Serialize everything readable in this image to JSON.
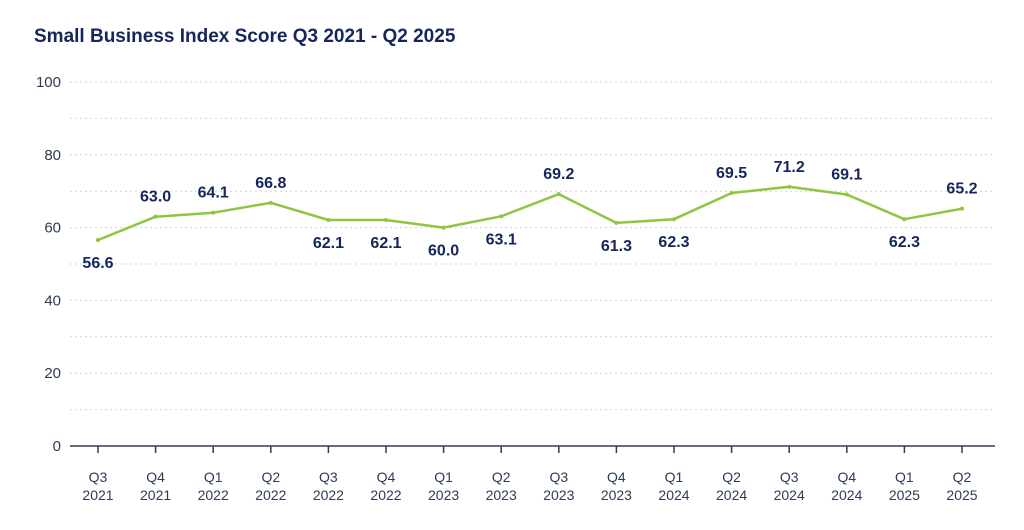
{
  "chart_data": {
    "type": "line",
    "title": "Small Business Index Score Q3 2021 - Q2 2025",
    "xlabel": "",
    "ylabel": "",
    "ylim": [
      0,
      100
    ],
    "yticks": [
      0,
      20,
      40,
      60,
      80,
      100
    ],
    "grid": true,
    "categories": [
      [
        "Q3",
        "2021"
      ],
      [
        "Q4",
        "2021"
      ],
      [
        "Q1",
        "2022"
      ],
      [
        "Q2",
        "2022"
      ],
      [
        "Q3",
        "2022"
      ],
      [
        "Q4",
        "2022"
      ],
      [
        "Q1",
        "2023"
      ],
      [
        "Q2",
        "2023"
      ],
      [
        "Q3",
        "2023"
      ],
      [
        "Q4",
        "2023"
      ],
      [
        "Q1",
        "2024"
      ],
      [
        "Q2",
        "2024"
      ],
      [
        "Q3",
        "2024"
      ],
      [
        "Q4",
        "2024"
      ],
      [
        "Q1",
        "2025"
      ],
      [
        "Q2",
        "2025"
      ]
    ],
    "series": [
      {
        "values": [
          56.6,
          63.0,
          64.1,
          66.8,
          62.1,
          62.1,
          60.0,
          63.1,
          69.2,
          61.3,
          62.3,
          69.5,
          71.2,
          69.1,
          62.3,
          65.2
        ],
        "labels": [
          "56.6",
          "63.0",
          "64.1",
          "66.8",
          "62.1",
          "62.1",
          "60.0",
          "63.1",
          "69.2",
          "61.3",
          "62.3",
          "69.5",
          "71.2",
          "69.1",
          "62.3",
          "65.2"
        ],
        "label_position": [
          "below",
          "above",
          "above",
          "above",
          "below",
          "below",
          "below",
          "below",
          "above",
          "below",
          "below",
          "above",
          "above",
          "above",
          "below",
          "above"
        ],
        "color": "#8dc63f"
      }
    ],
    "colors": {
      "title": "#15265a",
      "labels": "#15265a",
      "grid": "#cfd4dc",
      "axis": "#2f3a55"
    }
  }
}
